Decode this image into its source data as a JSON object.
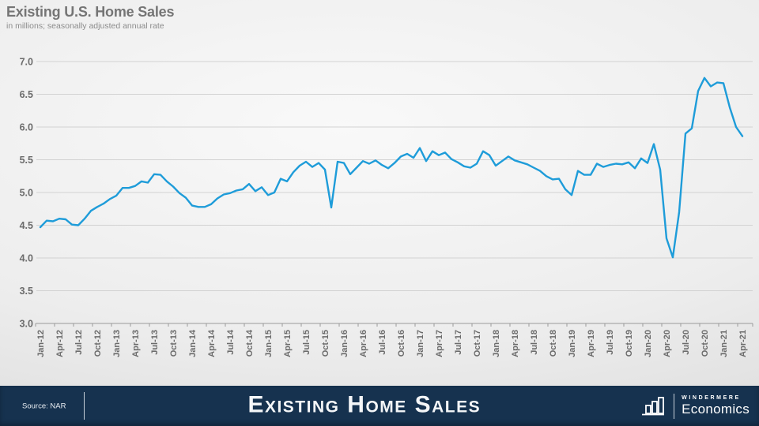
{
  "header": {
    "title": "Existing U.S. Home Sales",
    "subtitle": "in millions; seasonally adjusted annual rate"
  },
  "footer": {
    "source": "Source: NAR",
    "title": "Existing Home Sales",
    "brand": {
      "name": "WINDERMERE",
      "division": "Economics"
    }
  },
  "colors": {
    "line": "#1E9CD9",
    "footer_bg": "#16324F",
    "axis_text": "#6b6b6b",
    "grid": "#d2d2d2",
    "axis_line": "#9a9a9a"
  },
  "chart_data": {
    "type": "line",
    "title": "Existing U.S. Home Sales",
    "subtitle": "in millions; seasonally adjusted annual rate",
    "x_unit": "month",
    "x_start": "Jan-12",
    "x_end": "Apr-21",
    "x_tick_labels": [
      "Jan-12",
      "Apr-12",
      "Jul-12",
      "Oct-12",
      "Jan-13",
      "Apr-13",
      "Jul-13",
      "Oct-13",
      "Jan-14",
      "Apr-14",
      "Jul-14",
      "Oct-14",
      "Jan-15",
      "Apr-15",
      "Jul-15",
      "Oct-15",
      "Jan-16",
      "Apr-16",
      "Jul-16",
      "Oct-16",
      "Jan-17",
      "Apr-17",
      "Jul-17",
      "Oct-17",
      "Jan-18",
      "Apr-18",
      "Jul-18",
      "Oct-18",
      "Jan-19",
      "Apr-19",
      "Jul-19",
      "Oct-19",
      "Jan-20",
      "Apr-20",
      "Jul-20",
      "Oct-20",
      "Jan-21",
      "Apr-21"
    ],
    "ylim": [
      3.0,
      7.0
    ],
    "y_ticks": [
      3.0,
      3.5,
      4.0,
      4.5,
      5.0,
      5.5,
      6.0,
      6.5,
      7.0
    ],
    "grid": true,
    "legend": "none",
    "series": [
      {
        "name": "Existing home sales (millions, SAAR)",
        "values": [
          4.47,
          4.57,
          4.56,
          4.6,
          4.59,
          4.51,
          4.5,
          4.6,
          4.72,
          4.78,
          4.83,
          4.9,
          4.95,
          5.07,
          5.07,
          5.1,
          5.17,
          5.15,
          5.28,
          5.27,
          5.17,
          5.09,
          4.99,
          4.92,
          4.8,
          4.78,
          4.78,
          4.82,
          4.91,
          4.97,
          4.99,
          5.03,
          5.05,
          5.13,
          5.02,
          5.08,
          4.96,
          5.0,
          5.21,
          5.17,
          5.31,
          5.41,
          5.47,
          5.39,
          5.45,
          5.35,
          4.77,
          5.47,
          5.45,
          5.28,
          5.38,
          5.48,
          5.44,
          5.49,
          5.42,
          5.37,
          5.45,
          5.55,
          5.59,
          5.53,
          5.68,
          5.48,
          5.63,
          5.57,
          5.61,
          5.51,
          5.46,
          5.4,
          5.38,
          5.44,
          5.63,
          5.57,
          5.41,
          5.48,
          5.55,
          5.49,
          5.46,
          5.43,
          5.38,
          5.33,
          5.25,
          5.2,
          5.21,
          5.05,
          4.96,
          5.33,
          5.27,
          5.27,
          5.44,
          5.39,
          5.42,
          5.44,
          5.43,
          5.46,
          5.37,
          5.52,
          5.45,
          5.74,
          5.35,
          4.3,
          4.01,
          4.7,
          5.9,
          5.98,
          6.55,
          6.75,
          6.62,
          6.68,
          6.67,
          6.3,
          6.0,
          5.86
        ]
      }
    ]
  }
}
